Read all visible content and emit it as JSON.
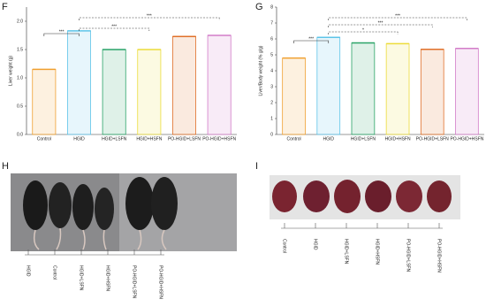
{
  "chart_data": [
    {
      "type": "bar",
      "panel": "F",
      "ylabel": "Liver weight (g)",
      "categories": [
        "Control",
        "HGID",
        "HGID+LSFN",
        "HGID+HSFN",
        "PO-HGID+LSFN",
        "PO-HGID+HSFN"
      ],
      "values": [
        1.15,
        1.83,
        1.5,
        1.5,
        1.73,
        1.75
      ],
      "colors": [
        "#f0a030",
        "#5ec4e8",
        "#2aa468",
        "#ecdc3a",
        "#e0702a",
        "#d27cc8"
      ],
      "ylim": [
        0,
        2.25
      ],
      "yticks": [
        {
          "value": 0,
          "label": "0.0"
        },
        {
          "value": 0.5,
          "label": "0.5"
        },
        {
          "value": 1,
          "label": "1.0"
        },
        {
          "value": 1.5,
          "label": "1.5"
        },
        {
          "value": 2,
          "label": "2.0"
        }
      ],
      "annotations": [
        "***",
        "***",
        "***"
      ]
    },
    {
      "type": "bar",
      "panel": "G",
      "ylabel": "Liver/Body weight (% g/g)",
      "categories": [
        "Control",
        "HGID",
        "HGID+LSFN",
        "HGID+HSFN",
        "PO-HGID+LSFN",
        "PO-HGID+HSFN"
      ],
      "values": [
        4.8,
        6.1,
        5.75,
        5.7,
        5.35,
        5.4
      ],
      "colors": [
        "#f0a030",
        "#5ec4e8",
        "#2aa468",
        "#ecdc3a",
        "#e0702a",
        "#d27cc8"
      ],
      "ylim": [
        0,
        8
      ],
      "yticks": [
        0,
        1,
        2,
        3,
        4,
        5,
        6,
        7,
        8
      ],
      "annotations": [
        "***",
        "***",
        "***",
        "*"
      ]
    }
  ],
  "figure_panels": [
    {
      "panel": "H",
      "labels": [
        "HGID",
        "Control",
        "HGID+LSFN",
        "HGID+HSFN",
        "PO-HGID+LSFN",
        "PO-HGID+HSFN"
      ]
    },
    {
      "panel": "I",
      "labels": [
        "Control",
        "HGID",
        "HGID+LSFN",
        "HGID+HSFN",
        "PO-HGID+LSFN",
        "PO-HGID+HSFN"
      ]
    }
  ]
}
